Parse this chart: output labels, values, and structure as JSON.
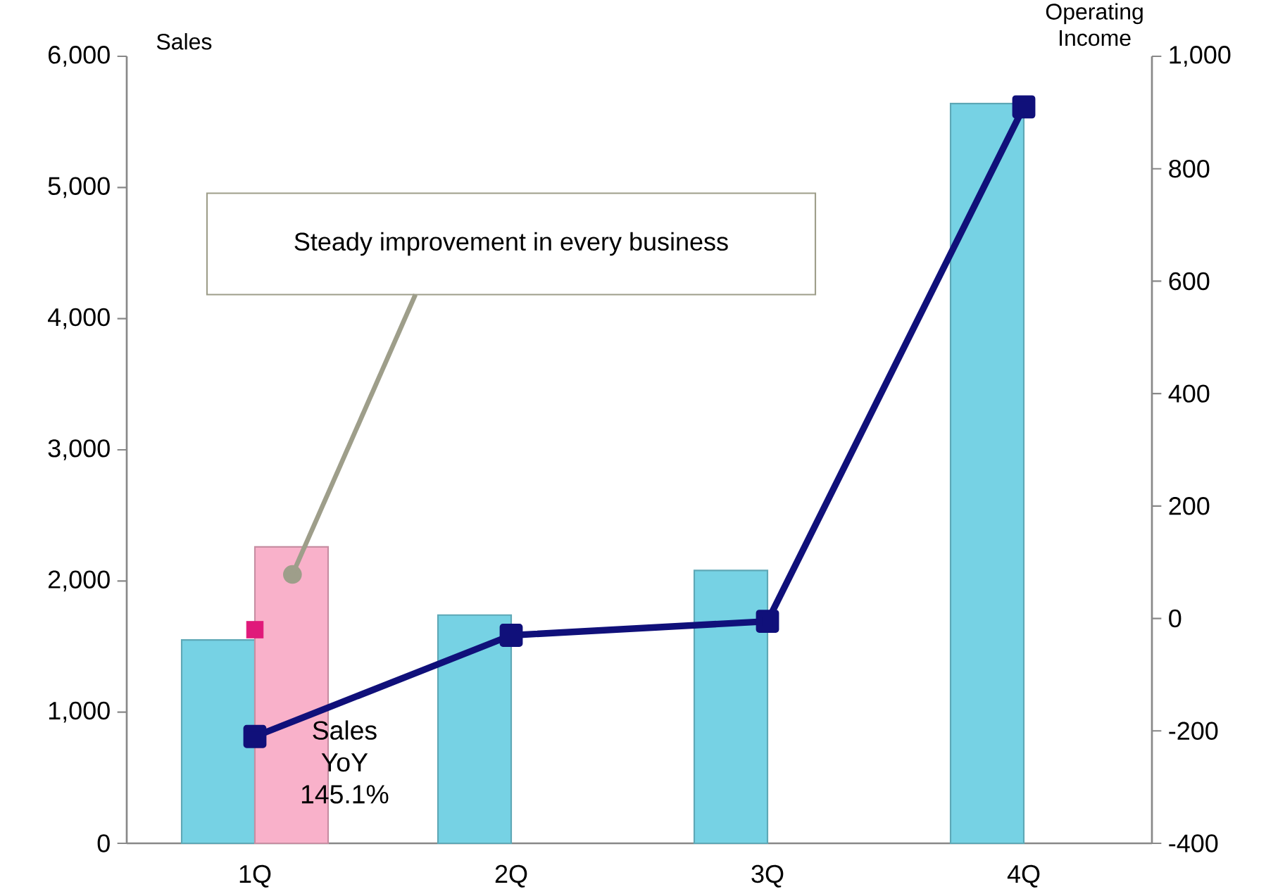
{
  "chart_data": {
    "type": "bar",
    "categories": [
      "1Q",
      "2Q",
      "3Q",
      "4Q"
    ],
    "ylabel": "Sales",
    "y2label": "Operating Income",
    "ylim": [
      0,
      6000
    ],
    "yticks": [
      0,
      {
        "value": 1000,
        "label": "1,000"
      },
      {
        "value": 2000,
        "label": "2,000"
      },
      {
        "value": 3000,
        "label": "3,000"
      },
      {
        "value": 4000,
        "label": "4,000"
      },
      {
        "value": 5000,
        "label": "5,000"
      },
      {
        "value": 6000,
        "label": "6,000"
      }
    ],
    "y2lim": [
      -400,
      1000
    ],
    "y2ticks": [
      -400,
      -200,
      0,
      200,
      400,
      600,
      800,
      {
        "value": 1000,
        "label": "1,000"
      }
    ],
    "series": [
      {
        "color": "#76d2e4",
        "values": [
          1550,
          1740,
          2080,
          5640
        ]
      },
      {
        "color": "#f9b1ca",
        "values": [
          2260,
          null,
          null,
          null
        ]
      },
      {
        "type": "line",
        "axis": "y2",
        "color": "#10107a",
        "marker": "square",
        "line_style": "solid",
        "values": [
          -210,
          -30,
          -5,
          910
        ]
      },
      {
        "type": "scatter",
        "axis": "y2",
        "color": "#e0197a",
        "marker": "square",
        "x": [
          "1Q"
        ],
        "values": [
          -20
        ]
      }
    ],
    "annotations": [
      "Steady improvement in every business",
      "Sales YoY 145.1%"
    ],
    "grid": false,
    "legend": false
  }
}
